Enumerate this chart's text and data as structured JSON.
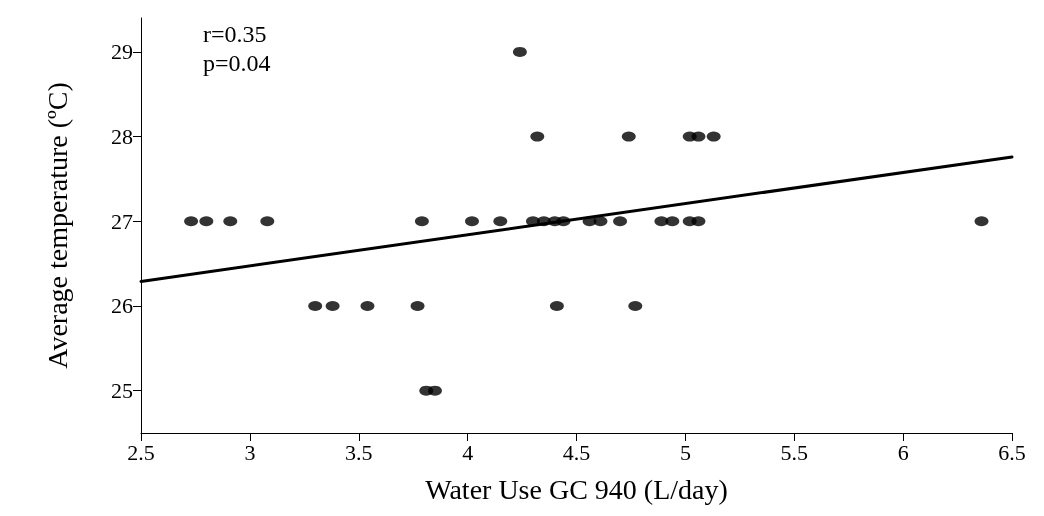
{
  "chart_data": {
    "type": "scatter",
    "xlabel": "Water Use GC 940 (L/day)",
    "ylabel": "Average temperature (ºC)",
    "annotations": [
      "r=0.35",
      "p=0.04"
    ],
    "xlim": [
      2.5,
      6.5
    ],
    "xticks": [
      2.5,
      3,
      3.5,
      4,
      4.5,
      5,
      5.5,
      6,
      6.5
    ],
    "ylim": [
      24.5,
      29.4
    ],
    "yticks": [
      25,
      26,
      27,
      28,
      29
    ],
    "grid": false,
    "series": [
      {
        "color": "#000000",
        "marker": "circle",
        "x": [
          2.73,
          2.8,
          2.91,
          3.08,
          3.79,
          4.02,
          4.15,
          4.3,
          4.35,
          4.4,
          4.44,
          4.56,
          4.61,
          4.7,
          4.89,
          4.94,
          5.02,
          5.06,
          6.36,
          3.3,
          3.38,
          3.54,
          3.77,
          4.41,
          4.77,
          3.81,
          3.85,
          4.32,
          4.74,
          5.02,
          5.06,
          5.13,
          4.24
        ],
        "values": [
          27,
          27,
          27,
          27,
          27,
          27,
          27,
          27,
          27,
          27,
          27,
          27,
          27,
          27,
          27,
          27,
          27,
          27,
          27,
          26,
          26,
          26,
          26,
          26,
          26,
          25,
          25,
          28,
          28,
          28,
          28,
          28,
          29
        ]
      },
      {
        "type": "line",
        "color": "#000000",
        "marker": "none",
        "line_style": "solid",
        "x": [
          2.5,
          6.5
        ],
        "values": [
          26.29,
          27.76
        ]
      }
    ]
  }
}
